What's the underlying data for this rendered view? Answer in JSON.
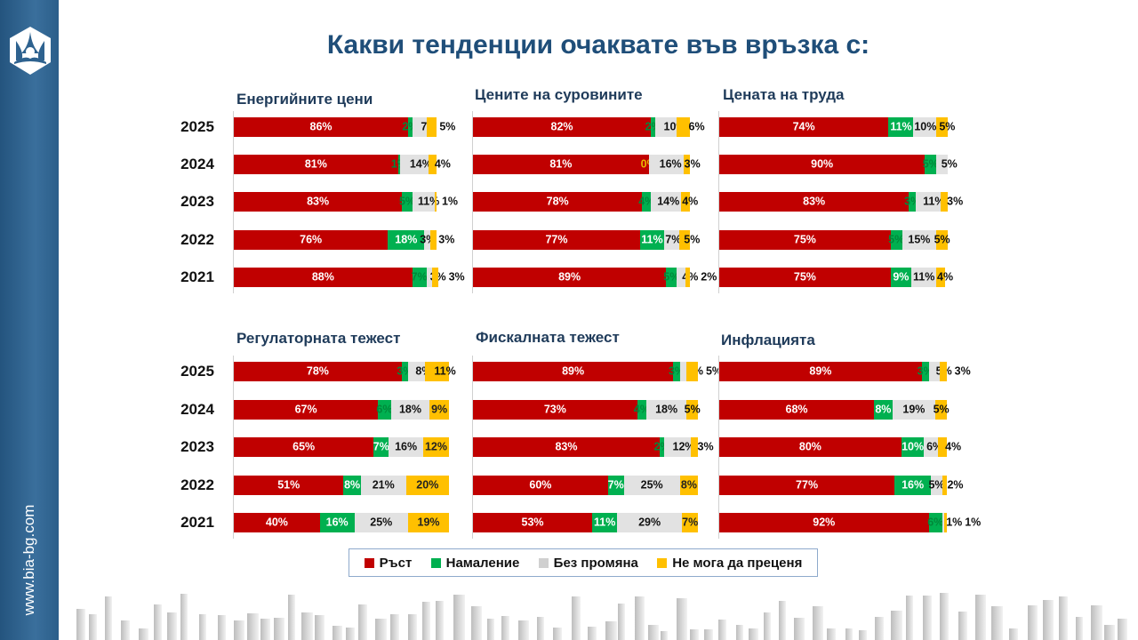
{
  "title": "Какви тенденции очаквате във връзка с:",
  "sidebar": {
    "url": "www.bia-bg.com",
    "logo_icon": "bia-hexagon-logo"
  },
  "colors": {
    "Ръст": "#c00000",
    "Намаление": "#00b050",
    "Без промяна": "#e2e2e2",
    "Не мога да преценя": "#ffc000"
  },
  "legend": [
    "Ръст",
    "Намаление",
    "Без промяна",
    "Не мога да преценя"
  ],
  "chart_data": [
    {
      "type": "bar",
      "orientation": "horizontal-stacked",
      "title": "Енергийните цени",
      "categories": [
        "2025",
        "2024",
        "2023",
        "2022",
        "2021"
      ],
      "series": [
        {
          "name": "Ръст",
          "values": [
            86,
            81,
            83,
            76,
            88
          ]
        },
        {
          "name": "Намаление",
          "values": [
            2,
            1,
            5,
            18,
            7
          ]
        },
        {
          "name": "Без промяна",
          "values": [
            7,
            14,
            11,
            3,
            3
          ]
        },
        {
          "name": "Не мога да преценя",
          "values": [
            5,
            4,
            1,
            3,
            3
          ]
        }
      ]
    },
    {
      "type": "bar",
      "orientation": "horizontal-stacked",
      "title": "Цените на суровините",
      "categories": [
        "2025",
        "2024",
        "2023",
        "2022",
        "2021"
      ],
      "series": [
        {
          "name": "Ръст",
          "values": [
            82,
            81,
            78,
            77,
            89
          ]
        },
        {
          "name": "Намаление",
          "values": [
            2,
            0,
            4,
            11,
            5
          ]
        },
        {
          "name": "Без промяна",
          "values": [
            10,
            16,
            14,
            7,
            4
          ]
        },
        {
          "name": "Не мога да преценя",
          "values": [
            6,
            3,
            4,
            5,
            2
          ]
        }
      ]
    },
    {
      "type": "bar",
      "orientation": "horizontal-stacked",
      "title": "Цената на труда",
      "categories": [
        "2025",
        "2024",
        "2023",
        "2022",
        "2021"
      ],
      "series": [
        {
          "name": "Ръст",
          "values": [
            74,
            90,
            83,
            75,
            75
          ]
        },
        {
          "name": "Намаление",
          "values": [
            11,
            5,
            3,
            5,
            9
          ]
        },
        {
          "name": "Без промяна",
          "values": [
            10,
            5,
            11,
            15,
            11
          ]
        },
        {
          "name": "Не мога да преценя",
          "values": [
            5,
            0,
            3,
            5,
            4
          ]
        }
      ]
    },
    {
      "type": "bar",
      "orientation": "horizontal-stacked",
      "title": "Регулаторната тежест",
      "categories": [
        "2025",
        "2024",
        "2023",
        "2022",
        "2021"
      ],
      "series": [
        {
          "name": "Ръст",
          "values": [
            78,
            67,
            65,
            51,
            40
          ]
        },
        {
          "name": "Намаление",
          "values": [
            3,
            6,
            7,
            8,
            16
          ]
        },
        {
          "name": "Без промяна",
          "values": [
            8,
            18,
            16,
            21,
            25
          ]
        },
        {
          "name": "Не мога да преценя",
          "values": [
            11,
            9,
            12,
            20,
            19
          ]
        }
      ]
    },
    {
      "type": "bar",
      "orientation": "horizontal-stacked",
      "title": "Фискалната тежест",
      "categories": [
        "2025",
        "2024",
        "2023",
        "2022",
        "2021"
      ],
      "series": [
        {
          "name": "Ръст",
          "values": [
            89,
            73,
            83,
            60,
            53
          ]
        },
        {
          "name": "Намаление",
          "values": [
            3,
            4,
            2,
            7,
            11
          ]
        },
        {
          "name": "Без промяна",
          "values": [
            3,
            18,
            12,
            25,
            29
          ]
        },
        {
          "name": "Не мога да преценя",
          "values": [
            5,
            5,
            3,
            8,
            7
          ]
        }
      ]
    },
    {
      "type": "bar",
      "orientation": "horizontal-stacked",
      "title": "Инфлацията",
      "categories": [
        "2025",
        "2024",
        "2023",
        "2022",
        "2021"
      ],
      "series": [
        {
          "name": "Ръст",
          "values": [
            89,
            68,
            80,
            77,
            92
          ]
        },
        {
          "name": "Намаление",
          "values": [
            3,
            8,
            10,
            16,
            6
          ]
        },
        {
          "name": "Без промяна",
          "values": [
            5,
            19,
            6,
            5,
            1
          ]
        },
        {
          "name": "Не мога да преценя",
          "values": [
            3,
            5,
            4,
            2,
            1
          ]
        }
      ]
    }
  ]
}
